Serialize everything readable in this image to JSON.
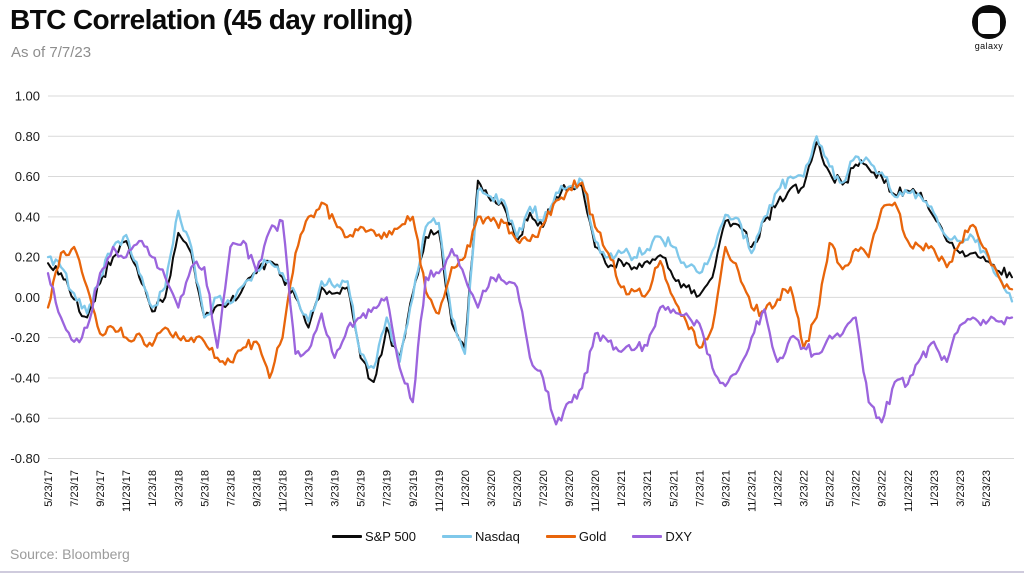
{
  "header": {
    "title": "BTC Correlation (45 day rolling)",
    "as_of": "As of 7/7/23"
  },
  "logo": {
    "text": "galaxy"
  },
  "footer": {
    "source": "Source: Bloomberg"
  },
  "chart_data": {
    "type": "line",
    "title": "BTC Correlation (45 day rolling)",
    "subtitle": "As of 7/7/23",
    "source": "Source: Bloomberg",
    "grid": "horizontal",
    "grid_color": "#d9d9d9",
    "legend_position": "bottom",
    "ylim": [
      -0.8,
      1.0
    ],
    "ytick_step": 0.2,
    "ytick_labels": [
      "1.00",
      "0.80",
      "0.60",
      "0.40",
      "0.20",
      "0.00",
      "-0.20",
      "-0.40",
      "-0.60",
      "-0.80"
    ],
    "x_labels": [
      "5/23/17",
      "7/23/17",
      "9/23/17",
      "11/23/17",
      "1/23/18",
      "3/23/18",
      "5/23/18",
      "7/23/18",
      "9/23/18",
      "11/23/18",
      "1/23/19",
      "3/23/19",
      "5/23/19",
      "7/23/19",
      "9/23/19",
      "11/23/19",
      "1/23/20",
      "3/23/20",
      "5/23/20",
      "7/23/20",
      "9/23/20",
      "11/23/20",
      "1/23/21",
      "3/23/21",
      "5/23/21",
      "7/23/21",
      "9/23/21",
      "11/23/21",
      "1/23/22",
      "3/23/22",
      "5/23/22",
      "7/23/22",
      "9/23/22",
      "11/23/22",
      "1/23/23",
      "3/23/23",
      "5/23/23"
    ],
    "x_note": "series values are monthly samples starting 5/23/17; 2 values per x tick interval",
    "series": [
      {
        "name": "S&P 500",
        "color": "#0b0b0b",
        "values": [
          0.17,
          0.12,
          -0.01,
          -0.1,
          0.07,
          0.2,
          0.28,
          0.1,
          -0.07,
          0.0,
          0.32,
          0.22,
          -0.1,
          -0.04,
          -0.02,
          0.05,
          0.12,
          0.18,
          0.1,
          0.0,
          -0.15,
          0.05,
          0.02,
          0.05,
          -0.3,
          -0.42,
          -0.15,
          -0.3,
          0.02,
          0.3,
          0.33,
          -0.13,
          -0.25,
          0.58,
          0.48,
          0.45,
          0.28,
          0.42,
          0.35,
          0.5,
          0.55,
          0.55,
          0.25,
          0.15,
          0.18,
          0.15,
          0.18,
          0.21,
          0.1,
          0.05,
          0.01,
          0.1,
          0.38,
          0.36,
          0.25,
          0.38,
          0.47,
          0.54,
          0.55,
          0.77,
          0.62,
          0.56,
          0.66,
          0.64,
          0.6,
          0.51,
          0.53,
          0.52,
          0.4,
          0.28,
          0.22,
          0.22,
          0.18,
          0.13,
          0.1
        ]
      },
      {
        "name": "Nasdaq",
        "color": "#7fc8ea",
        "values": [
          0.2,
          0.15,
          0.02,
          -0.08,
          0.1,
          0.25,
          0.31,
          0.12,
          -0.05,
          0.05,
          0.43,
          0.25,
          -0.1,
          0.0,
          -0.03,
          0.06,
          0.14,
          0.18,
          0.12,
          0.02,
          -0.12,
          0.08,
          0.05,
          0.08,
          -0.28,
          -0.35,
          -0.1,
          -0.32,
          0.0,
          0.35,
          0.37,
          -0.1,
          -0.28,
          0.53,
          0.5,
          0.48,
          0.3,
          0.45,
          0.38,
          0.52,
          0.55,
          0.58,
          0.28,
          0.2,
          0.22,
          0.2,
          0.24,
          0.3,
          0.25,
          0.15,
          0.12,
          0.23,
          0.41,
          0.39,
          0.22,
          0.4,
          0.53,
          0.6,
          0.6,
          0.8,
          0.65,
          0.57,
          0.7,
          0.68,
          0.62,
          0.5,
          0.52,
          0.5,
          0.42,
          0.3,
          0.28,
          0.3,
          0.22,
          0.1,
          -0.02
        ]
      },
      {
        "name": "Gold",
        "color": "#e8650b",
        "values": [
          -0.05,
          0.22,
          0.25,
          0.05,
          -0.18,
          -0.15,
          -0.2,
          -0.18,
          -0.24,
          -0.15,
          -0.2,
          -0.2,
          -0.22,
          -0.3,
          -0.32,
          -0.25,
          -0.22,
          -0.4,
          -0.2,
          0.22,
          0.4,
          0.47,
          0.38,
          0.3,
          0.35,
          0.33,
          0.3,
          0.35,
          0.4,
          0.03,
          -0.08,
          0.15,
          0.2,
          0.4,
          0.38,
          0.37,
          0.28,
          0.28,
          0.36,
          0.48,
          0.54,
          0.57,
          0.35,
          0.22,
          0.05,
          0.03,
          0.02,
          0.18,
          0.0,
          -0.12,
          -0.25,
          -0.15,
          0.25,
          0.13,
          -0.05,
          -0.07,
          -0.01,
          0.05,
          -0.25,
          -0.1,
          0.27,
          0.14,
          0.24,
          0.2,
          0.44,
          0.47,
          0.28,
          0.25,
          0.24,
          0.15,
          0.27,
          0.36,
          0.24,
          0.1,
          0.04
        ]
      },
      {
        "name": "DXY",
        "color": "#9b64dd",
        "values": [
          0.12,
          -0.1,
          -0.22,
          -0.15,
          0.12,
          0.25,
          0.2,
          0.28,
          0.2,
          0.1,
          -0.05,
          0.15,
          0.15,
          -0.25,
          0.25,
          0.28,
          0.13,
          0.33,
          0.38,
          -0.28,
          -0.26,
          -0.08,
          -0.3,
          -0.15,
          -0.1,
          -0.05,
          0.0,
          -0.35,
          -0.52,
          0.1,
          0.12,
          0.24,
          0.1,
          -0.05,
          0.1,
          0.08,
          0.05,
          -0.3,
          -0.4,
          -0.63,
          -0.52,
          -0.45,
          -0.18,
          -0.22,
          -0.27,
          -0.26,
          -0.24,
          -0.05,
          -0.06,
          -0.08,
          -0.13,
          -0.35,
          -0.44,
          -0.36,
          -0.2,
          -0.06,
          -0.32,
          -0.2,
          -0.25,
          -0.28,
          -0.19,
          -0.18,
          -0.1,
          -0.52,
          -0.62,
          -0.42,
          -0.43,
          -0.3,
          -0.22,
          -0.32,
          -0.14,
          -0.1,
          -0.13,
          -0.12,
          -0.1
        ]
      }
    ]
  }
}
